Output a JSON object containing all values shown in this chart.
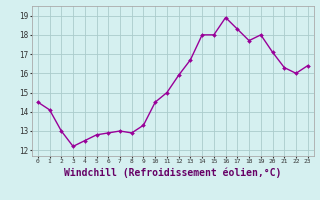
{
  "x": [
    0,
    1,
    2,
    3,
    4,
    5,
    6,
    7,
    8,
    9,
    10,
    11,
    12,
    13,
    14,
    15,
    16,
    17,
    18,
    19,
    20,
    21,
    22,
    23
  ],
  "y": [
    14.5,
    14.1,
    13.0,
    12.2,
    12.5,
    12.8,
    12.9,
    13.0,
    12.9,
    13.3,
    14.5,
    15.0,
    15.9,
    16.7,
    18.0,
    18.0,
    18.9,
    18.3,
    17.7,
    18.0,
    17.1,
    16.3,
    16.0,
    16.4
  ],
  "line_color": "#990099",
  "marker": "D",
  "marker_size": 2,
  "linewidth": 1.0,
  "bg_color": "#d5f0f0",
  "grid_color": "#aacccc",
  "xlabel": "Windchill (Refroidissement éolien,°C)",
  "xlabel_fontsize": 7,
  "xtick_labels": [
    "0",
    "1",
    "2",
    "3",
    "4",
    "5",
    "6",
    "7",
    "8",
    "9",
    "10",
    "11",
    "12",
    "13",
    "14",
    "15",
    "16",
    "17",
    "18",
    "19",
    "20",
    "21",
    "22",
    "23"
  ],
  "ytick_labels": [
    "12",
    "13",
    "14",
    "15",
    "16",
    "17",
    "18",
    "19"
  ],
  "ylim": [
    11.7,
    19.5
  ],
  "xlim": [
    -0.5,
    23.5
  ]
}
